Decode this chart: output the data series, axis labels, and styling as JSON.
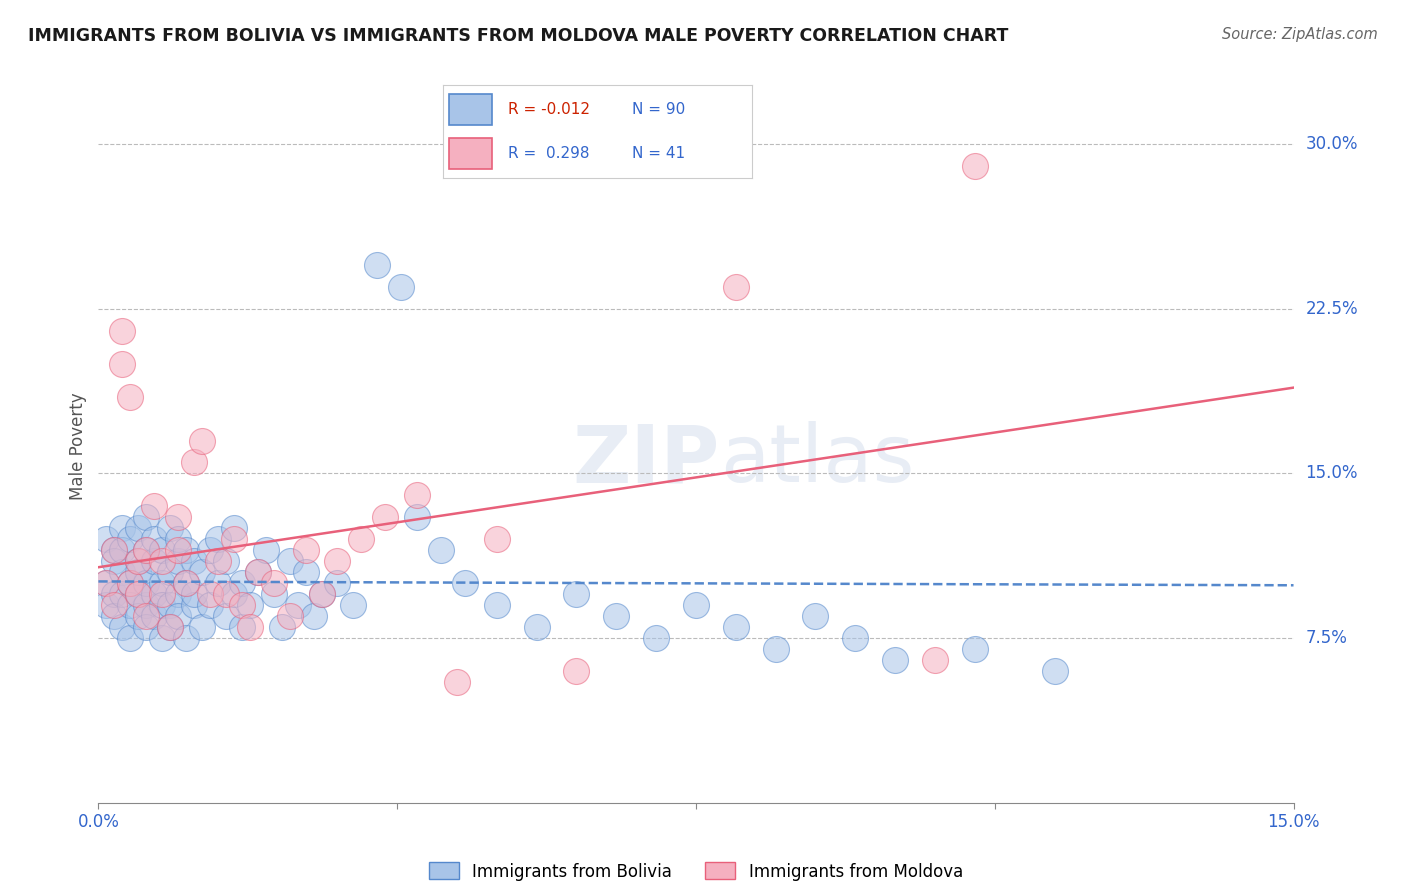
{
  "title": "IMMIGRANTS FROM BOLIVIA VS IMMIGRANTS FROM MOLDOVA MALE POVERTY CORRELATION CHART",
  "source": "Source: ZipAtlas.com",
  "ylabel": "Male Poverty",
  "bolivia_label": "Immigrants from Bolivia",
  "moldova_label": "Immigrants from Moldova",
  "bolivia_color": "#a8c4e8",
  "moldova_color": "#f5b0c0",
  "bolivia_line_color": "#5588cc",
  "moldova_line_color": "#e8607a",
  "bolivia_R": -0.012,
  "bolivia_N": 90,
  "moldova_R": 0.298,
  "moldova_N": 41,
  "xlim": [
    0.0,
    0.15
  ],
  "ylim": [
    0.0,
    0.325
  ],
  "xticks": [
    0.0,
    0.0375,
    0.075,
    0.1125,
    0.15
  ],
  "xtick_labels": [
    "0.0%",
    "",
    "",
    "",
    "15.0%"
  ],
  "ytick_positions": [
    0.075,
    0.15,
    0.225,
    0.3
  ],
  "ytick_labels": [
    "7.5%",
    "15.0%",
    "22.5%",
    "30.0%"
  ],
  "bolivia_x": [
    0.001,
    0.001,
    0.001,
    0.002,
    0.002,
    0.002,
    0.002,
    0.003,
    0.003,
    0.003,
    0.003,
    0.003,
    0.004,
    0.004,
    0.004,
    0.004,
    0.005,
    0.005,
    0.005,
    0.005,
    0.005,
    0.006,
    0.006,
    0.006,
    0.006,
    0.006,
    0.007,
    0.007,
    0.007,
    0.007,
    0.008,
    0.008,
    0.008,
    0.008,
    0.009,
    0.009,
    0.009,
    0.009,
    0.01,
    0.01,
    0.01,
    0.01,
    0.011,
    0.011,
    0.011,
    0.012,
    0.012,
    0.012,
    0.013,
    0.013,
    0.014,
    0.014,
    0.015,
    0.015,
    0.016,
    0.016,
    0.017,
    0.017,
    0.018,
    0.018,
    0.019,
    0.02,
    0.021,
    0.022,
    0.023,
    0.024,
    0.025,
    0.026,
    0.027,
    0.028,
    0.03,
    0.032,
    0.035,
    0.038,
    0.04,
    0.043,
    0.046,
    0.05,
    0.055,
    0.06,
    0.065,
    0.07,
    0.075,
    0.08,
    0.085,
    0.09,
    0.095,
    0.1,
    0.11,
    0.12
  ],
  "bolivia_y": [
    0.1,
    0.12,
    0.09,
    0.115,
    0.095,
    0.11,
    0.085,
    0.105,
    0.125,
    0.095,
    0.08,
    0.115,
    0.1,
    0.09,
    0.12,
    0.075,
    0.11,
    0.095,
    0.085,
    0.125,
    0.105,
    0.09,
    0.115,
    0.1,
    0.08,
    0.13,
    0.095,
    0.11,
    0.085,
    0.12,
    0.1,
    0.09,
    0.115,
    0.075,
    0.105,
    0.125,
    0.09,
    0.08,
    0.11,
    0.095,
    0.12,
    0.085,
    0.1,
    0.115,
    0.075,
    0.09,
    0.11,
    0.095,
    0.105,
    0.08,
    0.115,
    0.09,
    0.1,
    0.12,
    0.085,
    0.11,
    0.095,
    0.125,
    0.08,
    0.1,
    0.09,
    0.105,
    0.115,
    0.095,
    0.08,
    0.11,
    0.09,
    0.105,
    0.085,
    0.095,
    0.1,
    0.09,
    0.245,
    0.235,
    0.13,
    0.115,
    0.1,
    0.09,
    0.08,
    0.095,
    0.085,
    0.075,
    0.09,
    0.08,
    0.07,
    0.085,
    0.075,
    0.065,
    0.07,
    0.06
  ],
  "moldova_x": [
    0.001,
    0.002,
    0.002,
    0.003,
    0.003,
    0.004,
    0.004,
    0.005,
    0.005,
    0.006,
    0.006,
    0.007,
    0.008,
    0.008,
    0.009,
    0.01,
    0.01,
    0.011,
    0.012,
    0.013,
    0.014,
    0.015,
    0.016,
    0.017,
    0.018,
    0.019,
    0.02,
    0.022,
    0.024,
    0.026,
    0.028,
    0.03,
    0.033,
    0.036,
    0.04,
    0.045,
    0.05,
    0.06,
    0.08,
    0.105,
    0.11
  ],
  "moldova_y": [
    0.1,
    0.09,
    0.115,
    0.215,
    0.2,
    0.1,
    0.185,
    0.11,
    0.095,
    0.115,
    0.085,
    0.135,
    0.11,
    0.095,
    0.08,
    0.115,
    0.13,
    0.1,
    0.155,
    0.165,
    0.095,
    0.11,
    0.095,
    0.12,
    0.09,
    0.08,
    0.105,
    0.1,
    0.085,
    0.115,
    0.095,
    0.11,
    0.12,
    0.13,
    0.14,
    0.055,
    0.12,
    0.06,
    0.235,
    0.065,
    0.29
  ]
}
